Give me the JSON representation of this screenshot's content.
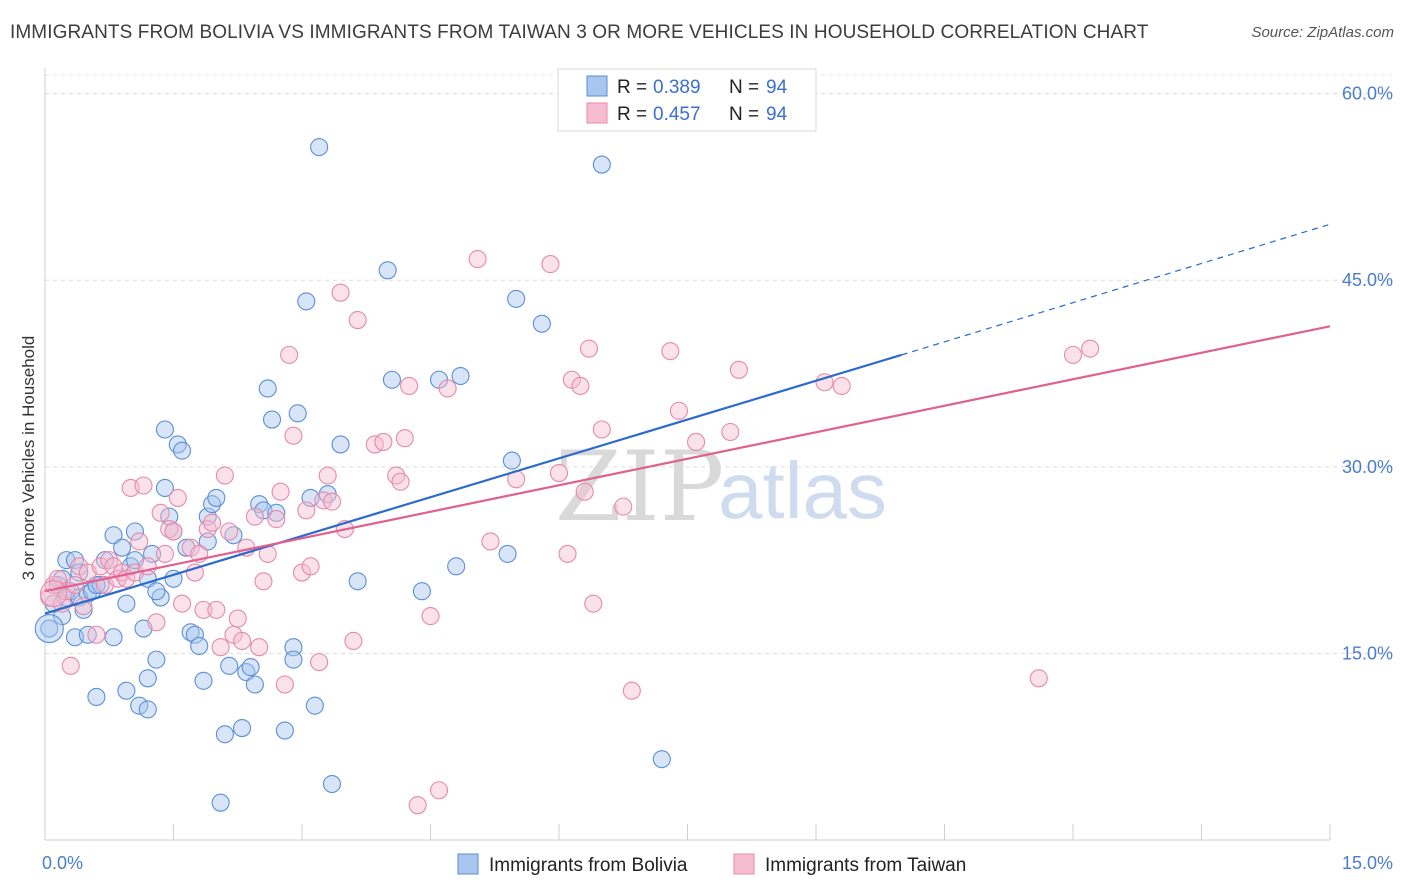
{
  "header": {
    "title": "IMMIGRANTS FROM BOLIVIA VS IMMIGRANTS FROM TAIWAN 3 OR MORE VEHICLES IN HOUSEHOLD CORRELATION CHART",
    "source": "Source: ZipAtlas.com"
  },
  "watermark": {
    "zip": "ZIP",
    "atlas": "atlas"
  },
  "legend": {
    "r_label": "R =",
    "n_label": "N =",
    "rows": [
      {
        "r": "0.389",
        "n": "94"
      },
      {
        "r": "0.457",
        "n": "94"
      }
    ]
  },
  "colors": {
    "bolivia_fill": "#a9c6ef",
    "bolivia_stroke": "#5b8fd6",
    "bolivia_line": "#2b6bcc",
    "taiwan_fill": "#f6bcd0",
    "taiwan_stroke": "#e58aab",
    "taiwan_line": "#e0608f"
  },
  "chart_data": {
    "type": "scatter",
    "title": "IMMIGRANTS FROM BOLIVIA VS IMMIGRANTS FROM TAIWAN 3 OR MORE VEHICLES IN HOUSEHOLD CORRELATION CHART",
    "xlabel": "",
    "ylabel": "3 or more Vehicles in Household",
    "x_unit": "%",
    "y_unit": "%",
    "xlim": [
      0,
      15
    ],
    "ylim": [
      0,
      61.5
    ],
    "x_tick_labels": [
      "0.0%",
      "15.0%"
    ],
    "y_ticks": [
      15,
      30,
      45,
      60
    ],
    "y_tick_labels": [
      "15.0%",
      "30.0%",
      "45.0%",
      "60.0%"
    ],
    "grid": "horizontal dashed",
    "legend_position": "top-center",
    "series": [
      {
        "name": "Immigrants from Bolivia",
        "r": 0.389,
        "n": 94,
        "trendline": {
          "x": [
            0,
            10.0
          ],
          "y": [
            18.2,
            39.0
          ],
          "dashed_extension": {
            "x": [
              10.0,
              15.0
            ],
            "y": [
              39.0,
              49.5
            ]
          }
        },
        "points": [
          [
            0.05,
            17.0
          ],
          [
            0.1,
            19.0
          ],
          [
            0.15,
            20.5
          ],
          [
            0.2,
            21.0
          ],
          [
            0.2,
            18.0
          ],
          [
            0.25,
            19.5
          ],
          [
            0.25,
            22.5
          ],
          [
            0.3,
            20.0
          ],
          [
            0.35,
            22.5
          ],
          [
            0.35,
            16.3
          ],
          [
            0.4,
            19.5
          ],
          [
            0.45,
            18.5
          ],
          [
            0.5,
            19.8
          ],
          [
            0.5,
            16.5
          ],
          [
            0.55,
            20.0
          ],
          [
            0.6,
            11.5
          ],
          [
            0.65,
            20.5
          ],
          [
            0.7,
            22.5
          ],
          [
            0.8,
            24.5
          ],
          [
            0.8,
            16.3
          ],
          [
            0.9,
            23.5
          ],
          [
            0.95,
            19.0
          ],
          [
            1.0,
            22.0
          ],
          [
            1.05,
            24.8
          ],
          [
            1.1,
            10.8
          ],
          [
            1.15,
            17.0
          ],
          [
            1.2,
            10.5
          ],
          [
            1.2,
            21.0
          ],
          [
            1.25,
            23.0
          ],
          [
            1.3,
            14.5
          ],
          [
            1.35,
            19.5
          ],
          [
            1.4,
            28.3
          ],
          [
            1.4,
            33.0
          ],
          [
            1.45,
            26.0
          ],
          [
            1.5,
            24.8
          ],
          [
            1.5,
            21.0
          ],
          [
            1.55,
            31.8
          ],
          [
            1.6,
            31.3
          ],
          [
            1.65,
            23.5
          ],
          [
            1.7,
            16.7
          ],
          [
            1.75,
            16.5
          ],
          [
            1.8,
            15.6
          ],
          [
            1.85,
            12.8
          ],
          [
            1.9,
            24.0
          ],
          [
            1.9,
            26.0
          ],
          [
            1.95,
            27.0
          ],
          [
            2.0,
            27.5
          ],
          [
            2.05,
            3.0
          ],
          [
            2.1,
            8.5
          ],
          [
            2.15,
            14.0
          ],
          [
            2.2,
            24.5
          ],
          [
            2.3,
            9.0
          ],
          [
            2.35,
            13.5
          ],
          [
            2.4,
            13.9
          ],
          [
            2.45,
            12.5
          ],
          [
            2.5,
            27.0
          ],
          [
            2.55,
            26.5
          ],
          [
            2.6,
            36.3
          ],
          [
            2.65,
            33.8
          ],
          [
            2.7,
            26.3
          ],
          [
            2.8,
            8.8
          ],
          [
            2.9,
            15.5
          ],
          [
            2.9,
            14.5
          ],
          [
            2.95,
            34.3
          ],
          [
            3.05,
            43.3
          ],
          [
            3.1,
            27.5
          ],
          [
            3.15,
            10.8
          ],
          [
            3.2,
            55.7
          ],
          [
            3.3,
            27.8
          ],
          [
            3.35,
            4.5
          ],
          [
            3.45,
            31.8
          ],
          [
            3.65,
            20.8
          ],
          [
            4.0,
            45.8
          ],
          [
            4.05,
            37.0
          ],
          [
            4.4,
            20.0
          ],
          [
            4.6,
            37.0
          ],
          [
            4.8,
            22.0
          ],
          [
            4.85,
            37.3
          ],
          [
            5.4,
            23.0
          ],
          [
            5.45,
            30.5
          ],
          [
            5.5,
            43.5
          ],
          [
            5.8,
            41.5
          ],
          [
            6.5,
            54.3
          ],
          [
            7.2,
            6.5
          ],
          [
            1.2,
            13.0
          ],
          [
            0.4,
            21.5
          ],
          [
            0.6,
            20.5
          ],
          [
            1.05,
            22.5
          ],
          [
            1.3,
            20.0
          ],
          [
            0.95,
            12.0
          ]
        ]
      },
      {
        "name": "Immigrants from Taiwan",
        "r": 0.457,
        "n": 94,
        "trendline": {
          "x": [
            0,
            15.0
          ],
          "y": [
            20.0,
            41.3
          ]
        },
        "points": [
          [
            0.05,
            19.5
          ],
          [
            0.1,
            20.5
          ],
          [
            0.15,
            21.0
          ],
          [
            0.2,
            19.0
          ],
          [
            0.25,
            20.0
          ],
          [
            0.3,
            14.0
          ],
          [
            0.35,
            20.5
          ],
          [
            0.4,
            22.0
          ],
          [
            0.45,
            18.8
          ],
          [
            0.5,
            21.5
          ],
          [
            0.6,
            16.5
          ],
          [
            0.65,
            22.0
          ],
          [
            0.7,
            20.5
          ],
          [
            0.75,
            22.5
          ],
          [
            0.8,
            22.0
          ],
          [
            0.85,
            21.0
          ],
          [
            0.9,
            21.5
          ],
          [
            0.95,
            21.0
          ],
          [
            1.0,
            28.3
          ],
          [
            1.05,
            21.5
          ],
          [
            1.1,
            24.0
          ],
          [
            1.15,
            28.5
          ],
          [
            1.2,
            22.0
          ],
          [
            1.3,
            17.5
          ],
          [
            1.35,
            26.3
          ],
          [
            1.4,
            23.0
          ],
          [
            1.45,
            25.0
          ],
          [
            1.5,
            24.8
          ],
          [
            1.55,
            27.5
          ],
          [
            1.6,
            19.0
          ],
          [
            1.7,
            23.5
          ],
          [
            1.75,
            21.5
          ],
          [
            1.8,
            23.0
          ],
          [
            1.85,
            18.5
          ],
          [
            1.9,
            25.0
          ],
          [
            1.95,
            25.5
          ],
          [
            2.0,
            18.5
          ],
          [
            2.05,
            15.5
          ],
          [
            2.1,
            29.3
          ],
          [
            2.15,
            24.8
          ],
          [
            2.2,
            16.5
          ],
          [
            2.25,
            17.8
          ],
          [
            2.3,
            16.0
          ],
          [
            2.35,
            23.5
          ],
          [
            2.45,
            26.0
          ],
          [
            2.5,
            15.5
          ],
          [
            2.55,
            20.8
          ],
          [
            2.6,
            23.0
          ],
          [
            2.7,
            25.8
          ],
          [
            2.75,
            28.0
          ],
          [
            2.8,
            12.5
          ],
          [
            2.85,
            39.0
          ],
          [
            2.9,
            32.5
          ],
          [
            3.0,
            21.5
          ],
          [
            3.05,
            26.5
          ],
          [
            3.1,
            22.0
          ],
          [
            3.2,
            14.3
          ],
          [
            3.25,
            27.3
          ],
          [
            3.3,
            29.3
          ],
          [
            3.35,
            27.2
          ],
          [
            3.45,
            44.0
          ],
          [
            3.5,
            25.0
          ],
          [
            3.6,
            16.0
          ],
          [
            3.65,
            41.8
          ],
          [
            3.85,
            31.8
          ],
          [
            3.95,
            32.0
          ],
          [
            4.1,
            29.3
          ],
          [
            4.15,
            28.8
          ],
          [
            4.2,
            32.3
          ],
          [
            4.25,
            36.5
          ],
          [
            4.35,
            2.8
          ],
          [
            4.5,
            18.0
          ],
          [
            4.6,
            4.0
          ],
          [
            4.7,
            36.3
          ],
          [
            5.05,
            46.7
          ],
          [
            5.2,
            24.0
          ],
          [
            5.5,
            29.0
          ],
          [
            5.9,
            46.3
          ],
          [
            6.0,
            29.5
          ],
          [
            6.1,
            23.0
          ],
          [
            6.15,
            37.0
          ],
          [
            6.25,
            36.5
          ],
          [
            6.3,
            28.0
          ],
          [
            6.35,
            39.5
          ],
          [
            6.4,
            19.0
          ],
          [
            6.5,
            33.0
          ],
          [
            6.75,
            26.8
          ],
          [
            6.85,
            12.0
          ],
          [
            7.3,
            39.3
          ],
          [
            7.4,
            34.5
          ],
          [
            7.6,
            32.0
          ],
          [
            8.0,
            32.8
          ],
          [
            8.1,
            37.8
          ],
          [
            9.1,
            36.8
          ]
        ],
        "extra_points": [
          [
            9.3,
            36.5
          ],
          [
            11.6,
            13.0
          ],
          [
            12.0,
            39.0
          ],
          [
            12.2,
            39.5
          ]
        ]
      }
    ]
  },
  "bottom_legend": [
    "Immigrants from Bolivia",
    "Immigrants from Taiwan"
  ]
}
